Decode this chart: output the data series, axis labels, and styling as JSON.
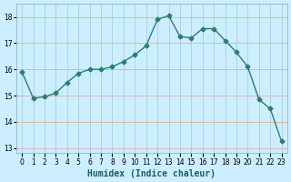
{
  "x": [
    0,
    1,
    2,
    3,
    4,
    5,
    6,
    7,
    8,
    9,
    10,
    11,
    12,
    13,
    14,
    15,
    16,
    17,
    18,
    19,
    20,
    21,
    22,
    23
  ],
  "y": [
    15.9,
    14.9,
    14.95,
    15.1,
    15.5,
    15.85,
    16.0,
    16.0,
    16.1,
    16.3,
    16.55,
    16.9,
    17.9,
    18.05,
    17.25,
    17.2,
    17.55,
    17.55,
    17.1,
    16.65,
    16.1,
    14.85,
    14.5,
    13.25
  ],
  "xlabel": "Humidex (Indice chaleur)",
  "ylabel": "",
  "ylim": [
    12.8,
    18.5
  ],
  "xlim": [
    -0.5,
    23.5
  ],
  "yticks": [
    13,
    14,
    15,
    16,
    17,
    18
  ],
  "xticks": [
    0,
    1,
    2,
    3,
    4,
    5,
    6,
    7,
    8,
    9,
    10,
    11,
    12,
    13,
    14,
    15,
    16,
    17,
    18,
    19,
    20,
    21,
    22,
    23
  ],
  "xlabels": [
    "0",
    "1",
    "2",
    "3",
    "4",
    "5",
    "6",
    "7",
    "8",
    "9",
    "10",
    "11",
    "12",
    "13",
    "14",
    "15",
    "16",
    "17",
    "18",
    "19",
    "20",
    "21",
    "22",
    "23"
  ],
  "line_color": "#2e7d6e",
  "marker": "D",
  "marker_size": 2.5,
  "bg_color": "#cceeff",
  "grid_h_color": "#e8a0a0",
  "grid_v_color": "#a0cccc"
}
